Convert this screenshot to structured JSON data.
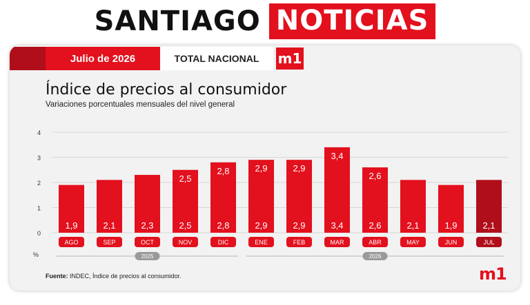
{
  "banner": {
    "name_black": "SANTIAGO",
    "name_red": "NOTICIAS"
  },
  "header": {
    "date": "Julio de 2026",
    "scope": "TOTAL NACIONAL",
    "logo": "m1"
  },
  "footer": {
    "source_label": "Fuente:",
    "source_text": "INDEC, Índice de precios al consumidor.",
    "logo": "m1"
  },
  "colors": {
    "bar": "#e3101d",
    "bar_highlight": "#b00e1a",
    "accent": "#e3101d"
  },
  "chart_data": {
    "type": "bar",
    "title": "Índice de precios al consumidor",
    "subtitle": "Variaciones porcentuales mensuales del nivel general",
    "categories": [
      "AGO",
      "SEP",
      "OCT",
      "NOV",
      "DIC",
      "ENE",
      "FEB",
      "MAR",
      "ABR",
      "MAY",
      "JUN",
      "JUL"
    ],
    "values": [
      1.9,
      2.1,
      2.3,
      2.5,
      2.8,
      2.9,
      2.9,
      3.4,
      2.6,
      2.1,
      1.9,
      2.1
    ],
    "data_labels": [
      "1,9",
      "2,1",
      "2,3",
      "2,5",
      "2,8",
      "2,9",
      "2,9",
      "3,4",
      "2,6",
      "2,1",
      "1,9",
      "2,1"
    ],
    "top_labels": [
      null,
      null,
      null,
      "2,5",
      "2,8",
      "2,9",
      "2,9",
      "3,4",
      "2,6",
      null,
      null,
      null
    ],
    "ylim": [
      0,
      4
    ],
    "yticks": [
      "0",
      "1",
      "2",
      "3",
      "4"
    ],
    "ylabel": "%",
    "grid": true,
    "highlight_index": 11,
    "year_groups": [
      {
        "label": "2025",
        "start": 0,
        "end": 4
      },
      {
        "label": "2026",
        "start": 5,
        "end": 11
      }
    ]
  }
}
